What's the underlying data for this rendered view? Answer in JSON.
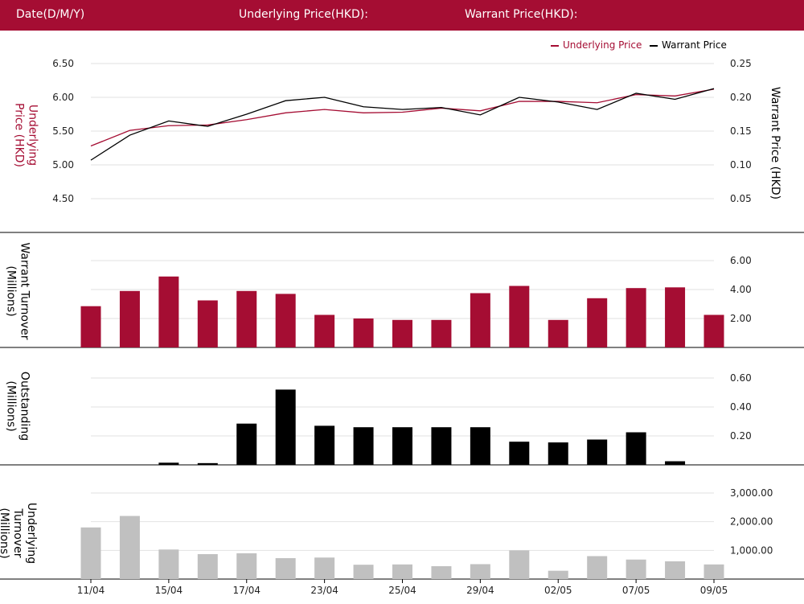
{
  "header": {
    "date_label": "Date(D/M/Y)",
    "underlying_label": "Underlying Price(HKD):",
    "warrant_label": "Warrant Price(HKD):"
  },
  "colors": {
    "brand": "#a50d33",
    "underlying": "#a50d33",
    "warrant": "#000000",
    "underlying_turnover": "#c0c0c0",
    "grid": "#e2e2e2"
  },
  "chart_data": [
    {
      "type": "line",
      "legend": [
        "Underlying Price",
        "Warrant Price"
      ],
      "legend_position": "top-right",
      "y_left_label": "Underlying Price (HKD)",
      "y_right_label": "Warrant  Price (HKD)",
      "y_left_ticks": [
        "4.50",
        "5.00",
        "5.50",
        "6.00",
        "6.50"
      ],
      "y_right_ticks": [
        "0.05",
        "0.10",
        "0.15",
        "0.20",
        "0.25"
      ],
      "y_left_range": [
        4.25,
        6.5
      ],
      "y_right_range": [
        0.025,
        0.25
      ],
      "series": [
        {
          "name": "Underlying Price",
          "axis": "left",
          "values": [
            5.28,
            5.51,
            5.58,
            5.59,
            5.67,
            5.77,
            5.82,
            5.77,
            5.78,
            5.84,
            5.8,
            5.94,
            5.94,
            5.92,
            6.04,
            6.02,
            6.12
          ]
        },
        {
          "name": "Warrant Price",
          "axis": "right",
          "values": [
            0.107,
            0.144,
            0.165,
            0.157,
            0.175,
            0.195,
            0.2,
            0.186,
            0.182,
            0.185,
            0.174,
            0.2,
            0.193,
            0.182,
            0.206,
            0.197,
            0.213
          ]
        }
      ],
      "grid": true
    },
    {
      "type": "bar",
      "y_label": "Warrant  Turnover (Millions)",
      "y_ticks": [
        "2.00",
        "4.00",
        "6.00"
      ],
      "y_range": [
        0,
        6
      ],
      "values": [
        2.85,
        3.9,
        4.9,
        3.25,
        3.9,
        3.7,
        2.25,
        2.0,
        1.9,
        1.9,
        3.75,
        4.25,
        1.9,
        3.4,
        4.1,
        4.15,
        2.25
      ],
      "grid": true
    },
    {
      "type": "bar",
      "y_label": "Outstanding (Millions)",
      "y_ticks": [
        "0.20",
        "0.40",
        "0.60"
      ],
      "y_range": [
        0,
        0.6
      ],
      "values": [
        0.0,
        0.0,
        0.015,
        0.012,
        0.285,
        0.52,
        0.27,
        0.26,
        0.26,
        0.26,
        0.26,
        0.16,
        0.155,
        0.175,
        0.225,
        0.025,
        0.0
      ],
      "grid": true
    },
    {
      "type": "bar",
      "y_label": "Underlying Turnover (Millions)",
      "y_ticks": [
        "1,000.00",
        "2,000.00",
        "3,000.00"
      ],
      "y_range": [
        0,
        3000
      ],
      "values": [
        1800,
        2200,
        1030,
        870,
        900,
        730,
        750,
        500,
        510,
        450,
        520,
        1000,
        290,
        800,
        680,
        620,
        510
      ],
      "grid": true
    }
  ],
  "x_axis": {
    "count": 17,
    "tick_labels": [
      "11/04",
      "15/04",
      "17/04",
      "23/04",
      "25/04",
      "29/04",
      "02/05",
      "07/05",
      "09/05"
    ],
    "tick_label_indices": [
      0,
      2,
      4,
      6,
      8,
      10,
      12,
      14,
      16
    ]
  }
}
